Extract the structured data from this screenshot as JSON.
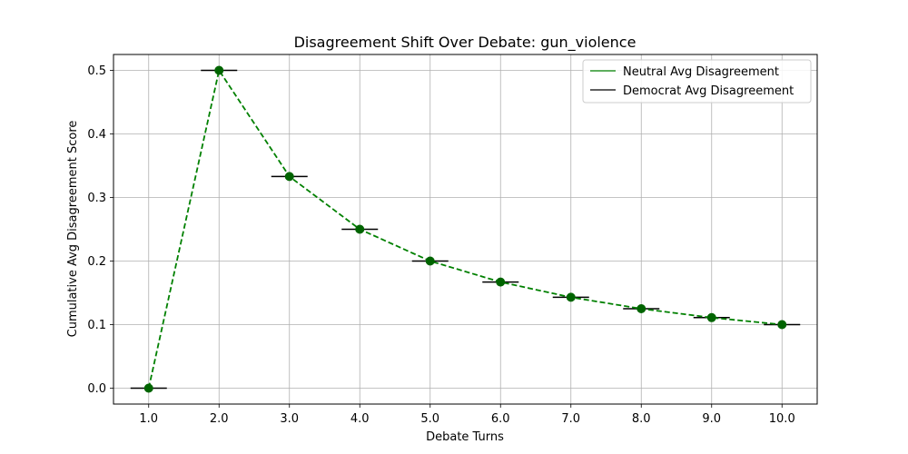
{
  "chart_data": {
    "type": "line",
    "title": "Disagreement Shift Over Debate: gun_violence",
    "xlabel": "Debate Turns",
    "ylabel": "Cumulative Avg Disagreement Score",
    "x": [
      1,
      2,
      3,
      4,
      5,
      6,
      7,
      8,
      9,
      10
    ],
    "x_tick_labels": [
      "1.0",
      "2.0",
      "3.0",
      "4.0",
      "5.0",
      "6.0",
      "7.0",
      "8.0",
      "9.0",
      "10.0"
    ],
    "y_ticks": [
      0.0,
      0.1,
      0.2,
      0.3,
      0.4,
      0.5
    ],
    "y_tick_labels": [
      "0.0",
      "0.1",
      "0.2",
      "0.3",
      "0.4",
      "0.5"
    ],
    "xlim": [
      0.5,
      10.5
    ],
    "ylim": [
      -0.025,
      0.525
    ],
    "grid": true,
    "legend_position": "top-right",
    "series": [
      {
        "name": "Neutral Avg Disagreement",
        "color": "#008000",
        "style": "dashed-with-circles",
        "values": [
          0.0,
          0.5,
          0.333,
          0.25,
          0.2,
          0.167,
          0.143,
          0.125,
          0.111,
          0.1
        ]
      },
      {
        "name": "Democrat Avg Disagreement",
        "color": "#000000",
        "style": "horizontal-markers",
        "values": [
          0.0,
          0.5,
          0.333,
          0.25,
          0.2,
          0.167,
          0.143,
          0.125,
          0.111,
          0.1
        ]
      }
    ]
  }
}
